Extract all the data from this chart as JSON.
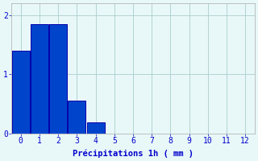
{
  "bar_centers": [
    0,
    1,
    2,
    3,
    4
  ],
  "values": [
    1.4,
    1.85,
    1.85,
    0.55,
    0.18
  ],
  "bar_width": 0.95,
  "bar_color": "#0044cc",
  "bar_edge_color": "#0000aa",
  "xlabel": "Précipitations 1h ( mm )",
  "xlabel_color": "#0000cc",
  "ylabel_color": "#0000cc",
  "yticks": [
    0,
    1,
    2
  ],
  "xticks": [
    0,
    1,
    2,
    3,
    4,
    5,
    6,
    7,
    8,
    9,
    10,
    11,
    12
  ],
  "ylim": [
    0,
    2.2
  ],
  "xlim": [
    -0.5,
    12.5
  ],
  "background_color": "#e8f8f8",
  "grid_color": "#aacccc",
  "tick_color": "#0000cc",
  "label_fontsize": 7.5,
  "tick_fontsize": 7
}
